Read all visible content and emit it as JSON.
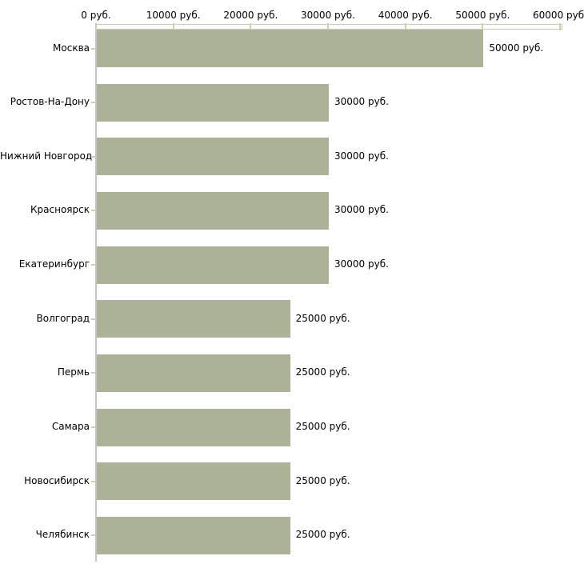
{
  "chart_data": {
    "type": "bar",
    "orientation": "horizontal",
    "title": "",
    "xlabel": "",
    "ylabel": "",
    "unit": "руб.",
    "categories": [
      "Москва",
      "Ростов-На-Дону",
      "Нижний Новгород",
      "Красноярск",
      "Екатеринбург",
      "Волгоград",
      "Пермь",
      "Самара",
      "Новосибирск",
      "Челябинск"
    ],
    "values": [
      50000,
      30000,
      30000,
      30000,
      30000,
      25000,
      25000,
      25000,
      25000,
      25000
    ],
    "value_labels": [
      "50000 руб.",
      "30000 руб.",
      "30000 руб.",
      "30000 руб.",
      "30000 руб.",
      "25000 руб.",
      "25000 руб.",
      "25000 руб.",
      "25000 руб.",
      "25000 руб."
    ],
    "x_ticks": [
      0,
      10000,
      20000,
      30000,
      40000,
      50000,
      60000
    ],
    "x_tick_labels": [
      "0 руб.",
      "10000 руб.",
      "20000 руб.",
      "30000 руб.",
      "40000 руб.",
      "50000 руб.",
      "60000 руб."
    ],
    "xlim": [
      0,
      60000
    ],
    "grid": false,
    "legend": false,
    "colors": {
      "bar": "#abb297",
      "axis": "#c4c4bd",
      "tick": "#cdd0ae",
      "text": "#000000",
      "background": "#ffffff"
    }
  }
}
